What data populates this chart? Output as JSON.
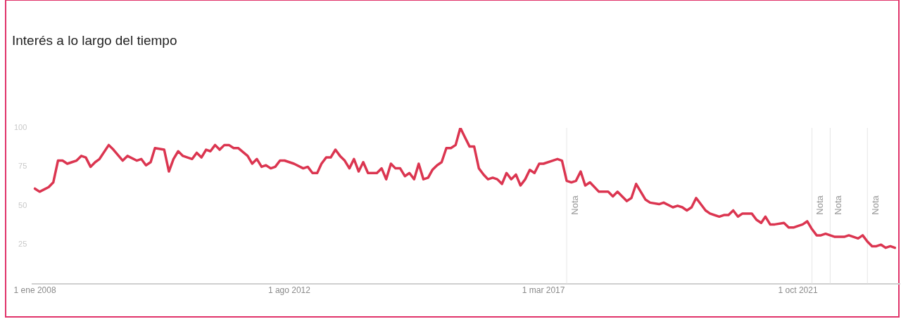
{
  "chart_data": {
    "type": "line",
    "title": "Interés a lo largo del tiempo",
    "x": [
      "2008-01",
      "2008-02",
      "2008-04",
      "2008-05",
      "2008-06",
      "2008-07",
      "2008-08",
      "2008-09",
      "2008-10",
      "2008-11",
      "2008-12",
      "2009-01",
      "2009-02",
      "2009-03",
      "2009-05",
      "2009-06",
      "2009-08",
      "2009-09",
      "2009-11",
      "2009-12",
      "2010-01",
      "2010-02",
      "2010-03",
      "2010-05",
      "2010-06",
      "2010-07",
      "2010-08",
      "2010-09",
      "2010-11",
      "2010-12",
      "2011-01",
      "2011-02",
      "2011-03",
      "2011-04",
      "2011-05",
      "2011-06",
      "2011-07",
      "2011-08",
      "2011-09",
      "2011-11",
      "2011-12",
      "2012-01",
      "2012-02",
      "2012-03",
      "2012-04",
      "2012-05",
      "2012-06",
      "2012-07",
      "2012-08",
      "2012-09",
      "2012-11",
      "2012-12",
      "2013-01",
      "2013-02",
      "2013-03",
      "2013-04",
      "2013-05",
      "2013-06",
      "2013-07",
      "2013-08",
      "2013-09",
      "2013-10",
      "2013-11",
      "2013-12",
      "2014-01",
      "2014-03",
      "2014-04",
      "2014-05",
      "2014-06",
      "2014-07",
      "2014-08",
      "2014-09",
      "2014-10",
      "2014-11",
      "2014-12",
      "2015-01",
      "2015-02",
      "2015-03",
      "2015-04",
      "2015-05",
      "2015-06",
      "2015-07",
      "2015-08",
      "2015-09",
      "2015-10",
      "2015-11",
      "2015-12",
      "2016-01",
      "2016-02",
      "2016-03",
      "2016-04",
      "2016-05",
      "2016-06",
      "2016-07",
      "2016-08",
      "2016-09",
      "2016-10",
      "2016-11",
      "2016-12",
      "2017-01",
      "2017-02",
      "2017-03",
      "2017-05",
      "2017-06",
      "2017-07",
      "2017-08",
      "2017-09",
      "2017-10",
      "2017-11",
      "2017-12",
      "2018-01",
      "2018-03",
      "2018-05",
      "2018-06",
      "2018-07",
      "2018-09",
      "2018-10",
      "2018-11",
      "2019-01",
      "2019-02",
      "2019-04",
      "2019-05",
      "2019-07",
      "2019-08",
      "2019-09",
      "2019-10",
      "2019-11",
      "2019-12",
      "2020-02",
      "2020-03",
      "2020-05",
      "2020-06",
      "2020-07",
      "2020-08",
      "2020-09",
      "2020-10",
      "2020-11",
      "2020-12",
      "2021-01",
      "2021-02",
      "2021-03",
      "2021-04",
      "2021-05",
      "2021-07",
      "2021-08",
      "2021-09",
      "2021-10",
      "2021-11",
      "2021-12",
      "2022-01",
      "2022-02",
      "2022-03",
      "2022-04",
      "2022-05",
      "2022-06",
      "2022-08",
      "2022-09",
      "2022-11",
      "2022-12",
      "2023-01",
      "2023-02",
      "2023-03",
      "2023-04",
      "2023-05",
      "2023-06",
      "2023-07"
    ],
    "series": [
      {
        "color": "#db3550",
        "values": [
          61,
          59,
          62,
          65,
          79,
          79,
          77,
          78,
          79,
          82,
          81,
          75,
          78,
          80,
          89,
          86,
          79,
          82,
          79,
          80,
          76,
          78,
          87,
          86,
          72,
          80,
          85,
          82,
          80,
          84,
          81,
          86,
          85,
          89,
          86,
          89,
          89,
          87,
          87,
          82,
          77,
          80,
          75,
          76,
          74,
          75,
          79,
          79,
          78,
          77,
          74,
          75,
          71,
          71,
          77,
          81,
          81,
          86,
          82,
          79,
          74,
          80,
          72,
          78,
          71,
          71,
          74,
          67,
          77,
          74,
          74,
          69,
          71,
          67,
          77,
          67,
          68,
          73,
          76,
          78,
          87,
          87,
          89,
          100,
          94,
          88,
          88,
          74,
          70,
          67,
          68,
          67,
          64,
          71,
          67,
          70,
          63,
          67,
          73,
          71,
          77,
          77,
          79,
          80,
          79,
          66,
          65,
          66,
          72,
          63,
          65,
          59,
          59,
          56,
          59,
          53,
          55,
          64,
          54,
          52,
          51,
          52,
          49,
          50,
          49,
          47,
          49,
          55,
          47,
          45,
          43,
          44,
          44,
          47,
          43,
          45,
          45,
          45,
          41,
          39,
          43,
          38,
          38,
          39,
          36,
          36,
          37,
          38,
          40,
          35,
          31,
          31,
          32,
          31,
          30,
          30,
          31,
          29,
          31,
          27,
          24,
          24,
          25,
          23,
          24,
          23
        ]
      }
    ],
    "xlim": [
      "2007-12-17",
      "2023-08-01"
    ],
    "xticks": [
      {
        "value": "2008-01-01",
        "label": "1 ene 2008"
      },
      {
        "value": "2012-08-01",
        "label": "1 ago 2012"
      },
      {
        "value": "2017-03-01",
        "label": "1 mar 2017"
      },
      {
        "value": "2021-10-01",
        "label": "1 oct 2021"
      }
    ],
    "ylim": [
      0,
      100
    ],
    "yticks": [
      25,
      50,
      75,
      100
    ],
    "ref_lines": [
      {
        "axis": "x",
        "value": "2017-08",
        "label": "Nota",
        "color": "#e6e6e6"
      },
      {
        "axis": "x",
        "value": "2022-01",
        "label": "Nota",
        "color": "#e6e6e6"
      },
      {
        "axis": "x",
        "value": "2022-05",
        "label": "Nota",
        "color": "#e6e6e6"
      },
      {
        "axis": "x",
        "value": "2023-01",
        "label": "Nota",
        "color": "#e6e6e6"
      }
    ],
    "grid": false,
    "legend": false,
    "marker": "none",
    "line_style": "solid"
  }
}
